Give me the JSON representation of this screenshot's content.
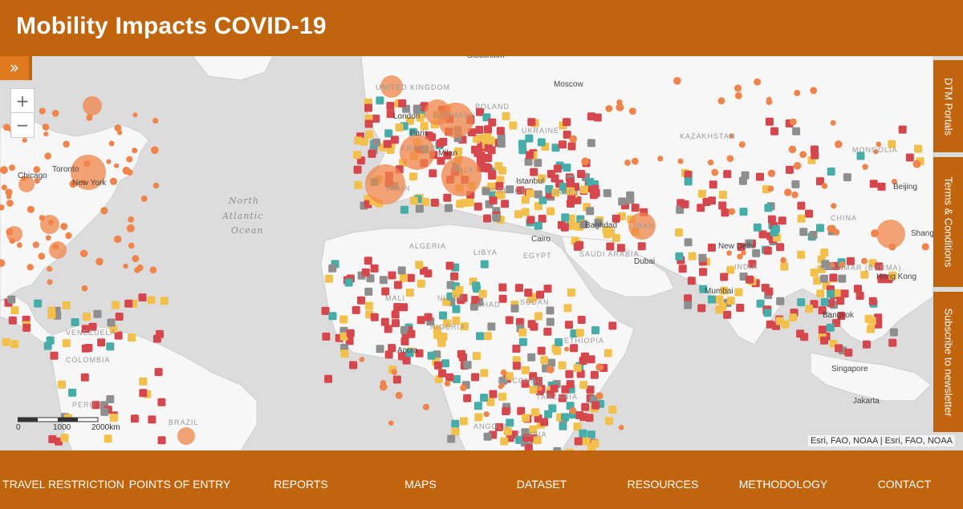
{
  "header": {
    "title": "Mobility Impacts COVID-19"
  },
  "controls": {
    "collapse_icon": "»",
    "zoom_in": "+",
    "zoom_out": "−"
  },
  "side_tabs": [
    "DTM Portals",
    "Terms & Conditions",
    "Subscribe to newsletter"
  ],
  "map": {
    "cities": [
      "Stockholm",
      "Moscow",
      "London",
      "Paris",
      "Milan",
      "Istanbul",
      "Baghdad",
      "Cairo",
      "Dubai",
      "New Delhi",
      "Mumbai",
      "Bangkok",
      "Singapore",
      "Jakarta",
      "Hong Kong",
      "Beijing",
      "Shangh",
      "Toronto",
      "Chicago",
      "New York",
      "Accra"
    ],
    "countries": [
      "UNITED KINGDOM",
      "GERMANY",
      "POLAND",
      "FRANCE",
      "UKRAINE",
      "KAZAKHSTAN",
      "MONGOLIA",
      "SPAIN",
      "ITALY",
      "GREECE",
      "TURKEY",
      "IRAN",
      "CHINA",
      "ALGERIA",
      "LIBYA",
      "EGYPT",
      "SAUDI ARABIA",
      "INDIA",
      "MYANMAR (BURMA)",
      "MALI",
      "NIGER",
      "CHAD",
      "SUDAN",
      "NIGERIA",
      "ETHIOPIA",
      "VENEZUELA",
      "COLOMBIA",
      "DR CONGO",
      "TANZANIA",
      "PERU",
      "BRAZIL",
      "ANGOLA",
      "ZAMBIA"
    ],
    "ocean": [
      "North",
      "Atlantic",
      "Ocean"
    ],
    "scale": {
      "zero": "0",
      "mid": "1000",
      "end": "2000km"
    },
    "marker_colors": {
      "red": "#d6464d",
      "yellow": "#f3c14b",
      "teal": "#46ada8",
      "gray": "#8e8e8e",
      "orange": "#f0844a"
    }
  },
  "attribution": "Esri, FAO, NOAA | Esri, FAO, NOAA",
  "footer": {
    "nav": [
      "TRAVEL RESTRICTION",
      "POINTS OF ENTRY",
      "REPORTS",
      "MAPS",
      "DATASET",
      "RESOURCES",
      "METHODOLOGY",
      "CONTACT"
    ]
  }
}
